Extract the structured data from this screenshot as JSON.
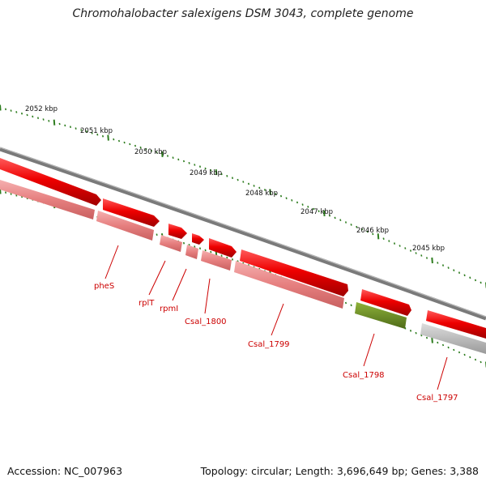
{
  "title": "Chromohalobacter salexigens DSM 3043, complete genome",
  "footer": {
    "accession": "Accession: NC_007963",
    "stats": "Topology: circular; Length: 3,696,649 bp; Genes: 3,388"
  },
  "ticks": [
    "2052 kbp",
    "2051 kbp",
    "2050 kbp",
    "2049 kbp",
    "2048 kbp",
    "2047 kbp",
    "2046 kbp",
    "2045 kbp"
  ],
  "genes": [
    "pheS",
    "rplT",
    "rpmI",
    "Csal_1800",
    "Csal_1799",
    "Csal_1798",
    "Csal_1797"
  ],
  "colors": {
    "cds": "#ee0000",
    "gene": "#e67f7f",
    "rna": "#6b8e23",
    "pseudo": "#b8b8b8",
    "backbone": "#7a7a7a",
    "tick": "#2e7d1f",
    "label": "#cc0000"
  }
}
